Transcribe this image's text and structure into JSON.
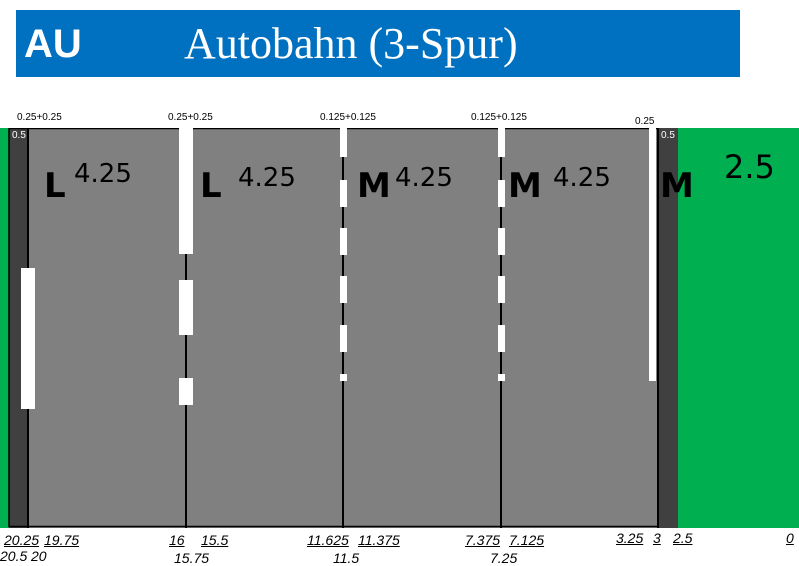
{
  "header": {
    "code": "AU",
    "title": "Autobahn (3-Spur)",
    "background": "#0070c0"
  },
  "colors": {
    "lane": "#808080",
    "edge": "#404040",
    "grass": "#00b050",
    "marking": "#ffffff"
  },
  "top_labels": [
    {
      "id": "left-edge",
      "text": "0.25+0.25"
    },
    {
      "id": "l-divider",
      "text": "0.25+0.25"
    },
    {
      "id": "lm-divider",
      "text": "0.125+0.125"
    },
    {
      "id": "mm-divider",
      "text": "0.125+0.125"
    },
    {
      "id": "right-edge",
      "text": "0.25"
    }
  ],
  "edge_labels": {
    "left": "0.5",
    "right": "0.5"
  },
  "lanes": [
    {
      "type": "L",
      "width": "4.25"
    },
    {
      "type": "L",
      "width": "4.25"
    },
    {
      "type": "M",
      "width": "4.25"
    },
    {
      "type": "M",
      "width": "4.25"
    }
  ],
  "right_shoulder": {
    "type": "M",
    "width": "2.5"
  },
  "bottom_labels": {
    "row1": [
      "20.25",
      "19.75",
      "16",
      "15.5",
      "11.625",
      "11.375",
      "7.375",
      "7.125",
      "3.25",
      "3",
      "2.5",
      "0"
    ],
    "row2": [
      "20.5",
      "20",
      "15.75",
      "11.5",
      "7.25"
    ]
  }
}
